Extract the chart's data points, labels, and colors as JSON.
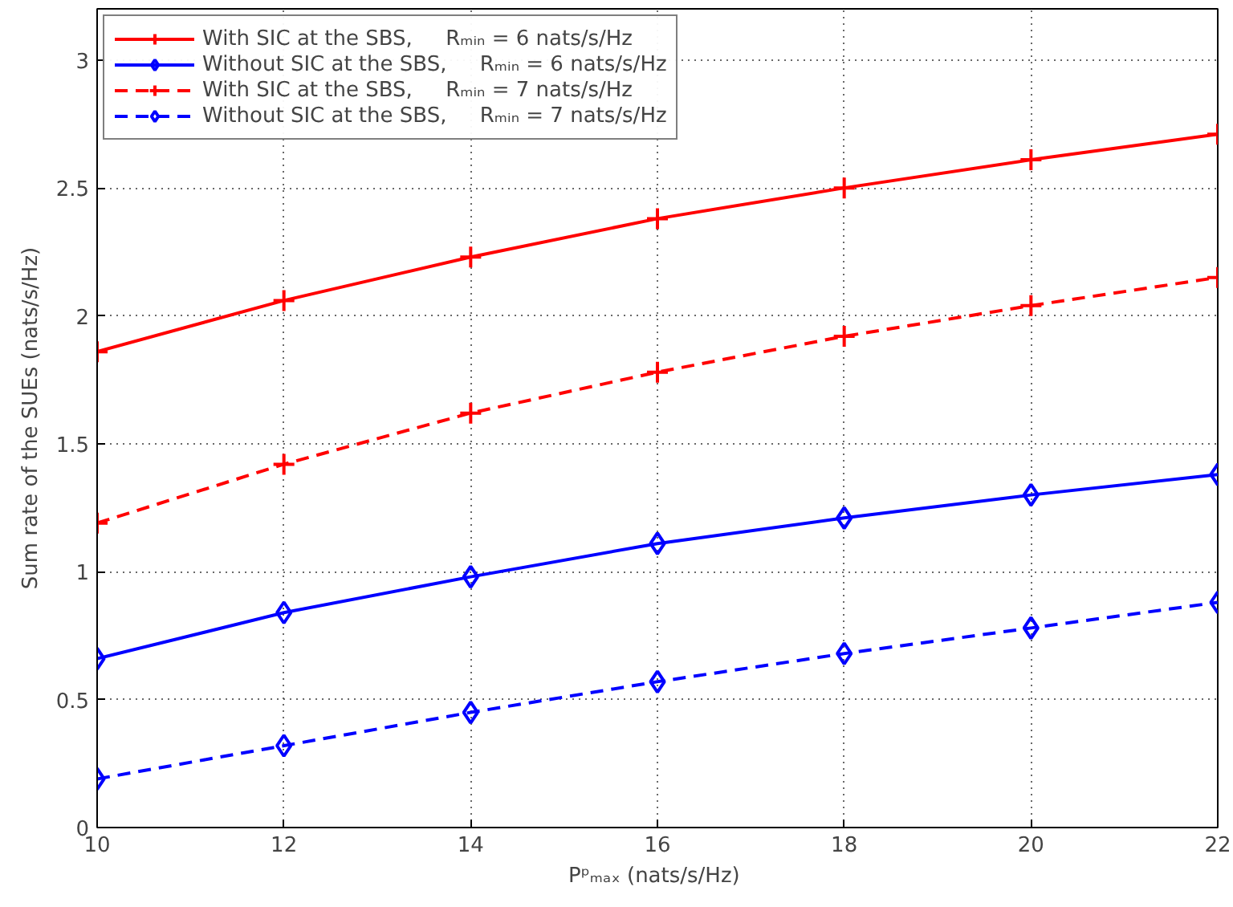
{
  "chart_data": {
    "type": "line",
    "xlabel": "Pᵖₘₐₓ  (nats/s/Hz)",
    "ylabel": "Sum rate of the SUEs (nats/s/Hz)",
    "x": [
      10,
      12,
      14,
      16,
      18,
      20,
      22
    ],
    "xlim": [
      10,
      22
    ],
    "xticks": [
      10,
      12,
      14,
      16,
      18,
      20,
      22
    ],
    "ylim": [
      0,
      3.2
    ],
    "yticks": [
      0,
      0.5,
      1,
      1.5,
      2,
      2.5,
      3
    ],
    "grid": true,
    "legend": "top left",
    "series": [
      {
        "name": "With SIC at the SBS,     Rₘᵢₙ = 6 nats/s/Hz",
        "color": "#ff0000",
        "marker": "cross",
        "line_style": "solid",
        "values": [
          1.86,
          2.06,
          2.23,
          2.38,
          2.5,
          2.61,
          2.71
        ]
      },
      {
        "name": "Without SIC at the SBS,     Rₘᵢₙ = 6 nats/s/Hz",
        "color": "#0000ff",
        "marker": "diamond",
        "line_style": "solid",
        "values": [
          0.66,
          0.84,
          0.98,
          1.11,
          1.21,
          1.3,
          1.38
        ]
      },
      {
        "name": "With SIC at the SBS,     Rₘᵢₙ = 7 nats/s/Hz",
        "color": "#ff0000",
        "marker": "cross",
        "line_style": "dashed",
        "values": [
          1.19,
          1.42,
          1.62,
          1.78,
          1.92,
          2.04,
          2.15
        ]
      },
      {
        "name": "Without SIC at the SBS,     Rₘᵢₙ = 7 nats/s/Hz",
        "color": "#0000ff",
        "marker": "diamond",
        "line_style": "dashed",
        "values": [
          0.19,
          0.32,
          0.45,
          0.57,
          0.68,
          0.78,
          0.88
        ]
      }
    ]
  }
}
